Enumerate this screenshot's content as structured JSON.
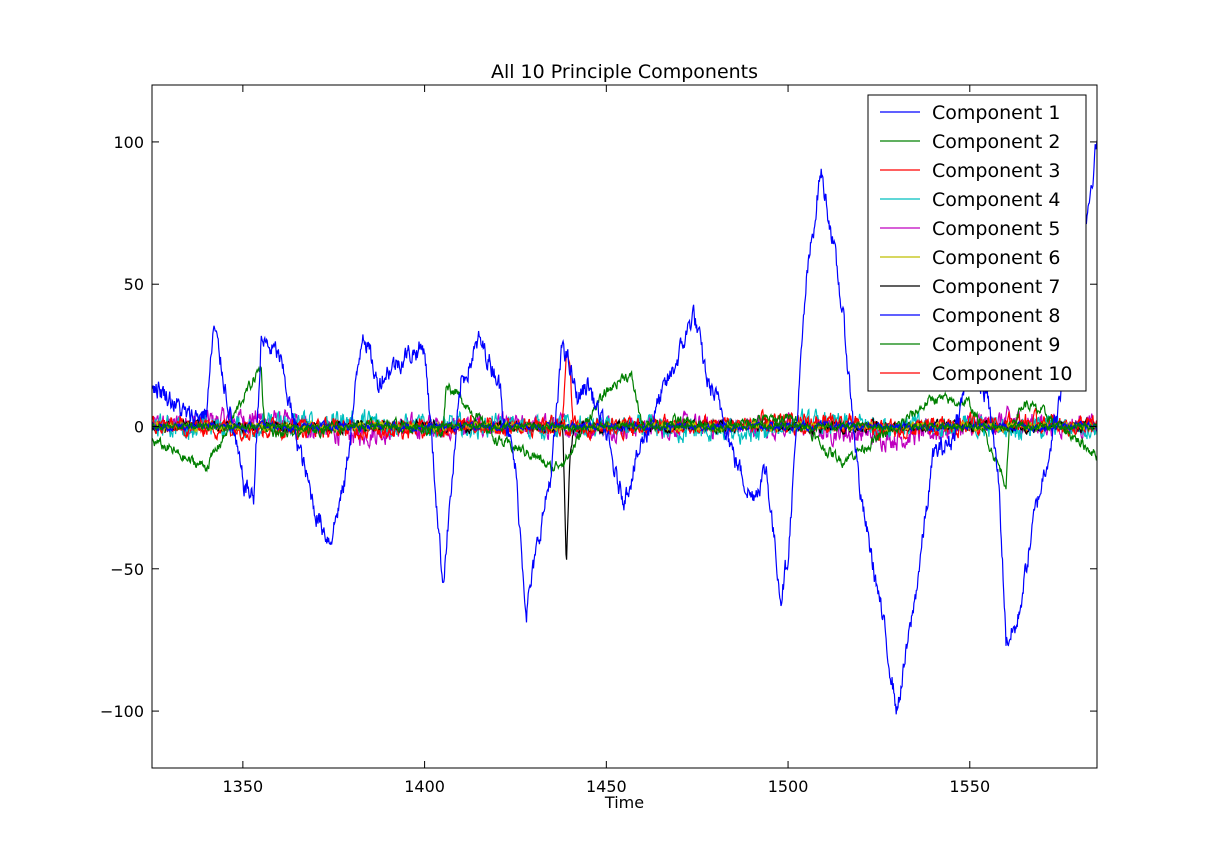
{
  "chart_data": {
    "type": "line",
    "title": "All 10 Principle Components",
    "xlabel": "Time",
    "ylabel": "",
    "xlim": [
      1325,
      1585
    ],
    "ylim": [
      -120,
      120
    ],
    "xticks": [
      1350,
      1400,
      1450,
      1500,
      1550
    ],
    "yticks": [
      -100,
      -50,
      0,
      50,
      100
    ],
    "ytick_labels": [
      "−100",
      "−50",
      "0",
      "50",
      "100"
    ],
    "grid": false,
    "legend_position": "top-right",
    "series": [
      {
        "name": "Component 1",
        "color": "#0000ff",
        "amplitude": 3,
        "x": [
          1325,
          1330,
          1335,
          1340,
          1342,
          1345,
          1350,
          1353,
          1355,
          1360,
          1365,
          1370,
          1374,
          1378,
          1383,
          1387,
          1390,
          1395,
          1400,
          1405,
          1410,
          1415,
          1420,
          1425,
          1428,
          1432,
          1435,
          1438,
          1442,
          1445,
          1450,
          1453,
          1455,
          1460,
          1465,
          1470,
          1474,
          1478,
          1482,
          1485,
          1490,
          1494,
          1498,
          1500,
          1505,
          1509,
          1512,
          1515,
          1520,
          1525,
          1530,
          1535,
          1540,
          1545,
          1550,
          1555,
          1558,
          1560,
          1563,
          1568,
          1575,
          1580,
          1585
        ],
        "y": [
          15,
          10,
          3,
          5,
          35,
          15,
          -20,
          -25,
          30,
          25,
          -5,
          -30,
          -40,
          -20,
          35,
          15,
          20,
          25,
          28,
          -55,
          15,
          30,
          18,
          -15,
          -65,
          -35,
          -15,
          30,
          10,
          15,
          -3,
          -20,
          -25,
          -5,
          10,
          25,
          40,
          15,
          5,
          -10,
          -25,
          -15,
          -60,
          -45,
          50,
          90,
          68,
          40,
          -25,
          -60,
          -100,
          -60,
          -10,
          -5,
          20,
          10,
          -20,
          -75,
          -70,
          -30,
          10,
          55,
          100
        ]
      },
      {
        "name": "Component 2",
        "color": "#008000",
        "amplitude": 1.5,
        "x": [
          1325,
          1330,
          1335,
          1340,
          1345,
          1350,
          1355,
          1356,
          1360,
          1370,
          1380,
          1390,
          1400,
          1405,
          1406,
          1410,
          1420,
          1430,
          1435,
          1440,
          1445,
          1450,
          1455,
          1457,
          1460,
          1470,
          1480,
          1490,
          1500,
          1505,
          1510,
          1515,
          1520,
          1530,
          1540,
          1550,
          1555,
          1560,
          1561,
          1565,
          1570,
          1575,
          1580,
          1585
        ],
        "y": [
          -5,
          -8,
          -12,
          -14,
          -3,
          10,
          21,
          0,
          -3,
          -1,
          0,
          1,
          -1,
          -2,
          15,
          10,
          -5,
          -10,
          -15,
          -10,
          3,
          12,
          18,
          17,
          0,
          2,
          -1,
          2,
          3,
          0,
          -8,
          -12,
          -8,
          0,
          10,
          8,
          -5,
          -20,
          0,
          8,
          5,
          0,
          -5,
          -10
        ]
      },
      {
        "name": "Component 3",
        "color": "#ff0000",
        "amplitude": 1.5,
        "x": [
          1325,
          1350,
          1400,
          1438,
          1439,
          1440,
          1441,
          1450,
          1500,
          1550,
          1585
        ],
        "y": [
          0,
          0,
          0,
          0,
          27,
          20,
          0,
          0,
          0,
          0,
          0
        ]
      },
      {
        "name": "Component 4",
        "color": "#00bfbf",
        "amplitude": 3,
        "x": [
          1325,
          1350,
          1380,
          1400,
          1450,
          1480,
          1493,
          1500,
          1550,
          1585
        ],
        "y": [
          0,
          0,
          2,
          0,
          0,
          -2,
          -3,
          1,
          0,
          0
        ]
      },
      {
        "name": "Component 5",
        "color": "#bf00bf",
        "amplitude": 3,
        "x": [
          1325,
          1342,
          1354,
          1380,
          1400,
          1450,
          1500,
          1530,
          1560,
          1585
        ],
        "y": [
          0,
          2,
          3,
          -3,
          0,
          0,
          0,
          -4,
          2,
          0
        ]
      },
      {
        "name": "Component 6",
        "color": "#bfbf00",
        "amplitude": 1,
        "x": [
          1325,
          1585
        ],
        "y": [
          0,
          0
        ]
      },
      {
        "name": "Component 7",
        "color": "#000000",
        "amplitude": 1.5,
        "x": [
          1325,
          1400,
          1438,
          1439,
          1440,
          1441,
          1450,
          1500,
          1550,
          1585
        ],
        "y": [
          0,
          0,
          0,
          -48,
          -10,
          0,
          0,
          0,
          0,
          0
        ]
      },
      {
        "name": "Component 8",
        "color": "#0000ff",
        "amplitude": 1,
        "x": [
          1325,
          1585
        ],
        "y": [
          0,
          0
        ]
      },
      {
        "name": "Component 9",
        "color": "#008000",
        "amplitude": 1,
        "x": [
          1325,
          1585
        ],
        "y": [
          0,
          0
        ]
      },
      {
        "name": "Component 10",
        "color": "#ff0000",
        "amplitude": 2.5,
        "x": [
          1325,
          1380,
          1420,
          1460,
          1500,
          1510,
          1530,
          1550,
          1560,
          1585
        ],
        "y": [
          0,
          -1,
          0,
          0,
          1,
          2,
          -2,
          1,
          2,
          0
        ]
      }
    ]
  }
}
